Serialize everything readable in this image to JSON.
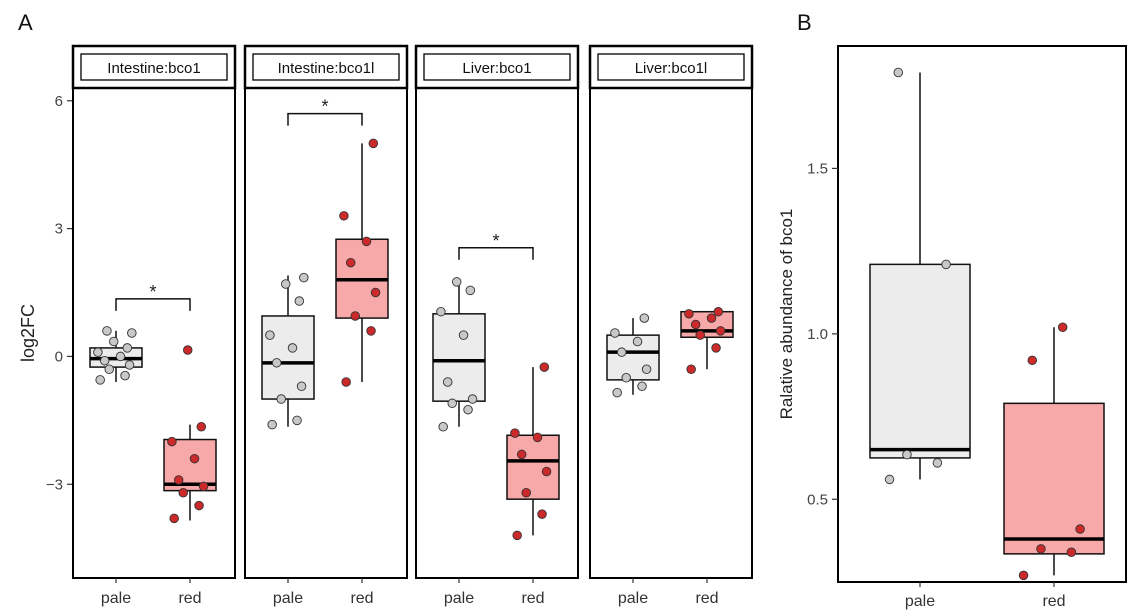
{
  "panel_labels": {
    "a": "A",
    "b": "B"
  },
  "colors": {
    "pale": "#ececec",
    "red": "#f7a8a8",
    "pale_point": "#c8c8c8",
    "red_point": "#cc2a2a"
  },
  "chart_data": [
    {
      "type": "box",
      "panel": "A",
      "ylabel": "log2FC",
      "ylim": [
        -5.2,
        6.3
      ],
      "yticks": [
        -3,
        0,
        3,
        6
      ],
      "ytick_labels": [
        "−3",
        "0",
        "3",
        "6"
      ],
      "categories": [
        "pale",
        "red"
      ],
      "facets": [
        {
          "strip": "Intestine:bco1",
          "groups": [
            {
              "name": "pale",
              "q1": -0.25,
              "median": -0.05,
              "q3": 0.2,
              "whisker_low": -0.6,
              "whisker_high": 0.6,
              "points": [
                -0.55,
                -0.45,
                -0.3,
                -0.2,
                -0.1,
                0.0,
                0.1,
                0.2,
                0.35,
                0.55,
                0.6
              ]
            },
            {
              "name": "red",
              "q1": -3.15,
              "median": -3.0,
              "q3": -1.95,
              "whisker_low": -3.85,
              "whisker_high": -1.6,
              "points": [
                -3.8,
                -3.5,
                -3.2,
                -3.05,
                -2.9,
                -2.4,
                -2.0,
                -1.65,
                0.15
              ]
            }
          ],
          "significance": {
            "label": "*",
            "y": 1.35
          }
        },
        {
          "strip": "Intestine:bco1l",
          "groups": [
            {
              "name": "pale",
              "q1": -1.0,
              "median": -0.15,
              "q3": 0.95,
              "whisker_low": -1.65,
              "whisker_high": 1.9,
              "points": [
                -1.6,
                -1.5,
                -1.0,
                -0.7,
                -0.15,
                0.2,
                0.5,
                1.3,
                1.7,
                1.85
              ]
            },
            {
              "name": "red",
              "q1": 0.9,
              "median": 1.8,
              "q3": 2.75,
              "whisker_low": -0.6,
              "whisker_high": 5.0,
              "points": [
                -0.6,
                0.6,
                0.95,
                1.5,
                2.2,
                2.7,
                3.3,
                5.0
              ]
            }
          ],
          "significance": {
            "label": "*",
            "y": 5.7
          }
        },
        {
          "strip": "Liver:bco1",
          "groups": [
            {
              "name": "pale",
              "q1": -1.05,
              "median": -0.1,
              "q3": 1.0,
              "whisker_low": -1.65,
              "whisker_high": 1.8,
              "points": [
                -1.65,
                -1.25,
                -1.1,
                -1.0,
                -0.6,
                0.5,
                1.05,
                1.55,
                1.75
              ]
            },
            {
              "name": "red",
              "q1": -3.35,
              "median": -2.45,
              "q3": -1.85,
              "whisker_low": -4.2,
              "whisker_high": -0.25,
              "points": [
                -4.2,
                -3.7,
                -3.2,
                -2.7,
                -2.3,
                -1.9,
                -1.8,
                -0.25
              ]
            }
          ],
          "significance": {
            "label": "*",
            "y": 2.55
          }
        },
        {
          "strip": "Liver:bco1l",
          "groups": [
            {
              "name": "pale",
              "q1": -0.55,
              "median": 0.1,
              "q3": 0.5,
              "whisker_low": -0.9,
              "whisker_high": 0.9,
              "points": [
                -0.85,
                -0.7,
                -0.5,
                -0.3,
                0.1,
                0.35,
                0.55,
                0.9
              ]
            },
            {
              "name": "red",
              "q1": 0.45,
              "median": 0.6,
              "q3": 1.05,
              "whisker_low": -0.3,
              "whisker_high": 1.05,
              "points": [
                -0.3,
                0.2,
                0.5,
                0.6,
                0.75,
                0.9,
                1.0,
                1.05
              ]
            }
          ],
          "significance": null
        }
      ]
    },
    {
      "type": "box",
      "panel": "B",
      "ylabel": "Ralative abundance of bco1",
      "ylim": [
        0.25,
        1.87
      ],
      "yticks": [
        0.5,
        1.0,
        1.5
      ],
      "ytick_labels": [
        "0.5",
        "1.0",
        "1.5"
      ],
      "categories": [
        "pale",
        "red"
      ],
      "groups": [
        {
          "name": "pale",
          "q1": 0.625,
          "median": 0.65,
          "q3": 1.21,
          "whisker_low": 0.56,
          "whisker_high": 1.79,
          "points": [
            0.56,
            0.61,
            0.635,
            1.21,
            1.79
          ]
        },
        {
          "name": "red",
          "q1": 0.335,
          "median": 0.38,
          "q3": 0.79,
          "whisker_low": 0.27,
          "whisker_high": 1.02,
          "points": [
            0.27,
            0.34,
            0.35,
            0.41,
            0.92,
            1.02
          ]
        }
      ]
    }
  ]
}
